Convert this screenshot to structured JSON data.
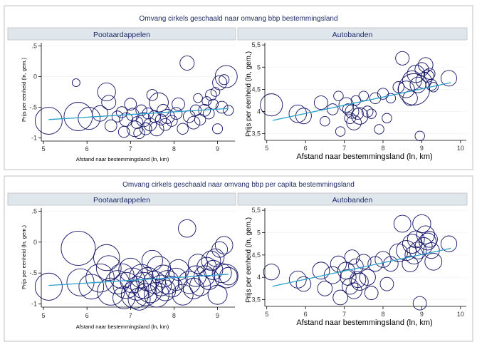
{
  "groups": [
    {
      "title": "Omvang cirkels geschaald naar omvang bbp bestemmingsland",
      "panels": [
        {
          "title": "Pootaardappelen",
          "ylabel": "Prijs per eenheid (ln, gem.)",
          "xlabel": "Afstand naar bestemmingsland (ln, km)"
        },
        {
          "title": "Autobanden",
          "ylabel": "Prijs per eenheid (ln, gem.)",
          "xlabel": "Afstand naar bestemmingsland (ln, km)"
        }
      ]
    },
    {
      "title": "Omvang cirkels geschaald naar omvang bbp per capita bestemmingsland",
      "panels": [
        {
          "title": "Pootaardappelen",
          "ylabel": "Prijs per eenheid (ln, gem.)",
          "xlabel": "Afstand naar bestemmingsland (ln, km)"
        },
        {
          "title": "Autobanden",
          "ylabel": "Prijs per eenheid (ln, gem.)",
          "xlabel": "Afstand naar bestemmingsland (ln, km)"
        }
      ]
    }
  ],
  "chart_data": [
    {
      "type": "scatter",
      "title": "Pootaardappelen",
      "group": "Omvang cirkels geschaald naar omvang bbp bestemmingsland",
      "xlabel": "Afstand naar bestemmingsland (ln, km)",
      "ylabel": "Prijs per eenheid (ln, gem.)",
      "xlim": [
        4.95,
        9.4
      ],
      "ylim": [
        -1.05,
        0.55
      ],
      "xticks": [
        5,
        6,
        7,
        8,
        9
      ],
      "yticks": [
        0.5,
        0,
        -0.5,
        -1
      ],
      "ytick_labels": [
        ".5",
        "0",
        "-.5",
        "-1"
      ],
      "bubble_size": "bbp",
      "points": [
        {
          "x": 5.12,
          "y": -0.72,
          "s": 1.8
        },
        {
          "x": 5.75,
          "y": -0.1,
          "s": 0.15
        },
        {
          "x": 5.8,
          "y": -0.65,
          "s": 2.0
        },
        {
          "x": 6.05,
          "y": -0.68,
          "s": 1.2
        },
        {
          "x": 6.3,
          "y": -0.6,
          "s": 0.6
        },
        {
          "x": 6.45,
          "y": -0.25,
          "s": 0.8
        },
        {
          "x": 6.5,
          "y": -0.42,
          "s": 0.5
        },
        {
          "x": 6.55,
          "y": -0.8,
          "s": 0.35
        },
        {
          "x": 6.7,
          "y": -0.65,
          "s": 0.3
        },
        {
          "x": 6.8,
          "y": -0.58,
          "s": 0.3
        },
        {
          "x": 6.85,
          "y": -0.9,
          "s": 0.3
        },
        {
          "x": 6.9,
          "y": -0.7,
          "s": 0.45
        },
        {
          "x": 7.0,
          "y": -0.45,
          "s": 0.35
        },
        {
          "x": 7.05,
          "y": -0.62,
          "s": 0.4
        },
        {
          "x": 7.1,
          "y": -0.85,
          "s": 0.6
        },
        {
          "x": 7.15,
          "y": -0.75,
          "s": 0.35
        },
        {
          "x": 7.2,
          "y": -0.92,
          "s": 0.3
        },
        {
          "x": 7.25,
          "y": -0.55,
          "s": 0.3
        },
        {
          "x": 7.3,
          "y": -0.7,
          "s": 0.5
        },
        {
          "x": 7.35,
          "y": -0.85,
          "s": 0.35
        },
        {
          "x": 7.4,
          "y": -0.6,
          "s": 0.3
        },
        {
          "x": 7.45,
          "y": -0.78,
          "s": 0.4
        },
        {
          "x": 7.5,
          "y": -0.3,
          "s": 0.3
        },
        {
          "x": 7.55,
          "y": -0.65,
          "s": 0.35
        },
        {
          "x": 7.6,
          "y": -0.85,
          "s": 0.5
        },
        {
          "x": 7.65,
          "y": -0.42,
          "s": 0.9
        },
        {
          "x": 7.7,
          "y": -0.7,
          "s": 0.3
        },
        {
          "x": 7.75,
          "y": -0.55,
          "s": 0.35
        },
        {
          "x": 7.8,
          "y": -0.78,
          "s": 0.35
        },
        {
          "x": 7.85,
          "y": -0.65,
          "s": 0.5
        },
        {
          "x": 7.95,
          "y": -0.72,
          "s": 0.3
        },
        {
          "x": 8.05,
          "y": -0.6,
          "s": 0.35
        },
        {
          "x": 8.1,
          "y": -0.45,
          "s": 0.4
        },
        {
          "x": 8.2,
          "y": -0.85,
          "s": 0.3
        },
        {
          "x": 8.3,
          "y": 0.22,
          "s": 0.5
        },
        {
          "x": 8.35,
          "y": -0.65,
          "s": 0.35
        },
        {
          "x": 8.45,
          "y": -0.75,
          "s": 0.4
        },
        {
          "x": 8.5,
          "y": -0.55,
          "s": 0.3
        },
        {
          "x": 8.55,
          "y": -0.35,
          "s": 0.2
        },
        {
          "x": 8.6,
          "y": -0.7,
          "s": 0.3
        },
        {
          "x": 8.7,
          "y": -0.55,
          "s": 0.35
        },
        {
          "x": 8.75,
          "y": -0.4,
          "s": 0.2
        },
        {
          "x": 8.8,
          "y": -0.6,
          "s": 0.3
        },
        {
          "x": 8.85,
          "y": -0.3,
          "s": 0.3
        },
        {
          "x": 8.9,
          "y": -0.45,
          "s": 0.25
        },
        {
          "x": 8.95,
          "y": -0.25,
          "s": 0.2
        },
        {
          "x": 9.0,
          "y": -0.85,
          "s": 0.25
        },
        {
          "x": 9.05,
          "y": -0.1,
          "s": 0.5
        },
        {
          "x": 9.1,
          "y": -0.5,
          "s": 0.35
        },
        {
          "x": 9.15,
          "y": -0.05,
          "s": 0.25
        },
        {
          "x": 9.2,
          "y": 0.0,
          "s": 1.2
        },
        {
          "x": 9.25,
          "y": -0.55,
          "s": 0.25
        }
      ],
      "fit": {
        "x": [
          5.12,
          9.25
        ],
        "y": [
          -0.7,
          -0.52
        ]
      }
    },
    {
      "type": "scatter",
      "title": "Autobanden",
      "group": "Omvang cirkels geschaald naar omvang bbp bestemmingsland",
      "xlabel": "Afstand naar bestemmingsland (ln, km)",
      "ylabel": "Prijs per eenheid (ln, gem.)",
      "xlim": [
        4.95,
        10.15
      ],
      "ylim": [
        3.35,
        5.55
      ],
      "xticks": [
        5,
        6,
        7,
        8,
        9,
        10
      ],
      "yticks": [
        5.5,
        5,
        4.5,
        4,
        3.5
      ],
      "ytick_labels": [
        "5,5",
        "5",
        "4,5",
        "4",
        "3,5"
      ],
      "bubble_size": "bbp",
      "points": [
        {
          "x": 5.12,
          "y": 4.15,
          "s": 0.8
        },
        {
          "x": 5.8,
          "y": 3.95,
          "s": 0.5
        },
        {
          "x": 5.95,
          "y": 3.9,
          "s": 0.4
        },
        {
          "x": 6.4,
          "y": 4.2,
          "s": 0.3
        },
        {
          "x": 6.5,
          "y": 3.78,
          "s": 0.15
        },
        {
          "x": 6.7,
          "y": 4.05,
          "s": 0.2
        },
        {
          "x": 6.85,
          "y": 4.35,
          "s": 0.15
        },
        {
          "x": 6.9,
          "y": 3.55,
          "s": 0.15
        },
        {
          "x": 7.05,
          "y": 4.15,
          "s": 0.35
        },
        {
          "x": 7.1,
          "y": 4.05,
          "s": 0.2
        },
        {
          "x": 7.15,
          "y": 3.85,
          "s": 0.2
        },
        {
          "x": 7.2,
          "y": 4.0,
          "s": 0.3
        },
        {
          "x": 7.25,
          "y": 3.75,
          "s": 0.35
        },
        {
          "x": 7.3,
          "y": 4.25,
          "s": 0.15
        },
        {
          "x": 7.35,
          "y": 3.95,
          "s": 0.2
        },
        {
          "x": 7.4,
          "y": 3.9,
          "s": 0.45
        },
        {
          "x": 7.5,
          "y": 4.35,
          "s": 0.15
        },
        {
          "x": 7.6,
          "y": 4.0,
          "s": 0.2
        },
        {
          "x": 7.7,
          "y": 3.95,
          "s": 0.15
        },
        {
          "x": 7.8,
          "y": 4.3,
          "s": 0.2
        },
        {
          "x": 7.9,
          "y": 3.6,
          "s": 0.15
        },
        {
          "x": 8.0,
          "y": 4.4,
          "s": 0.2
        },
        {
          "x": 8.1,
          "y": 3.85,
          "s": 0.15
        },
        {
          "x": 8.2,
          "y": 4.3,
          "s": 0.15
        },
        {
          "x": 8.4,
          "y": 4.55,
          "s": 0.2
        },
        {
          "x": 8.5,
          "y": 5.2,
          "s": 0.3
        },
        {
          "x": 8.6,
          "y": 4.5,
          "s": 0.45
        },
        {
          "x": 8.7,
          "y": 4.3,
          "s": 0.35
        },
        {
          "x": 8.75,
          "y": 4.7,
          "s": 0.6
        },
        {
          "x": 8.8,
          "y": 4.5,
          "s": 1.6
        },
        {
          "x": 8.85,
          "y": 4.85,
          "s": 0.5
        },
        {
          "x": 8.9,
          "y": 4.6,
          "s": 0.4
        },
        {
          "x": 8.95,
          "y": 3.45,
          "s": 0.15
        },
        {
          "x": 9.0,
          "y": 4.95,
          "s": 0.3
        },
        {
          "x": 9.05,
          "y": 4.7,
          "s": 0.4
        },
        {
          "x": 9.1,
          "y": 5.05,
          "s": 0.35
        },
        {
          "x": 9.15,
          "y": 4.8,
          "s": 0.25
        },
        {
          "x": 9.2,
          "y": 4.85,
          "s": 0.2
        },
        {
          "x": 9.25,
          "y": 4.6,
          "s": 0.2
        },
        {
          "x": 9.3,
          "y": 4.55,
          "s": 0.15
        },
        {
          "x": 9.7,
          "y": 4.75,
          "s": 0.4
        }
      ],
      "fit": {
        "x": [
          5.15,
          9.75
        ],
        "y": [
          3.8,
          4.65
        ]
      }
    },
    {
      "type": "scatter",
      "title": "Pootaardappelen",
      "group": "Omvang cirkels geschaald naar omvang bbp per capita bestemmingsland",
      "xlabel": "Afstand naar bestemmingsland (ln, km)",
      "ylabel": "Prijs per eenheid (ln, gem.)",
      "xlim": [
        4.95,
        9.4
      ],
      "ylim": [
        -1.05,
        0.55
      ],
      "xticks": [
        5,
        6,
        7,
        8,
        9
      ],
      "yticks": [
        0.5,
        0,
        -0.5,
        -1
      ],
      "ytick_labels": [
        ".5",
        "0",
        "-.5",
        "-1"
      ],
      "bubble_size": "bbp per capita",
      "points": [
        {
          "x": 5.12,
          "y": -0.72,
          "s": 1.2
        },
        {
          "x": 5.8,
          "y": -0.1,
          "s": 1.9
        },
        {
          "x": 5.85,
          "y": -0.65,
          "s": 1.2
        },
        {
          "x": 6.1,
          "y": -0.72,
          "s": 1.0
        },
        {
          "x": 6.3,
          "y": -0.58,
          "s": 1.3
        },
        {
          "x": 6.45,
          "y": -0.25,
          "s": 1.1
        },
        {
          "x": 6.5,
          "y": -0.42,
          "s": 1.0
        },
        {
          "x": 6.55,
          "y": -0.8,
          "s": 1.2
        },
        {
          "x": 6.7,
          "y": -0.65,
          "s": 0.9
        },
        {
          "x": 6.8,
          "y": -0.55,
          "s": 1.0
        },
        {
          "x": 6.85,
          "y": -0.9,
          "s": 0.8
        },
        {
          "x": 6.9,
          "y": -0.7,
          "s": 1.1
        },
        {
          "x": 7.0,
          "y": -0.45,
          "s": 0.9
        },
        {
          "x": 7.05,
          "y": -0.62,
          "s": 1.0
        },
        {
          "x": 7.1,
          "y": -0.85,
          "s": 1.2
        },
        {
          "x": 7.15,
          "y": -0.75,
          "s": 0.9
        },
        {
          "x": 7.2,
          "y": -0.92,
          "s": 0.8
        },
        {
          "x": 7.25,
          "y": -0.55,
          "s": 0.9
        },
        {
          "x": 7.3,
          "y": -0.7,
          "s": 1.1
        },
        {
          "x": 7.35,
          "y": -0.85,
          "s": 0.8
        },
        {
          "x": 7.4,
          "y": -0.6,
          "s": 0.9
        },
        {
          "x": 7.45,
          "y": -0.78,
          "s": 1.0
        },
        {
          "x": 7.5,
          "y": -0.3,
          "s": 0.7
        },
        {
          "x": 7.55,
          "y": -0.65,
          "s": 0.8
        },
        {
          "x": 7.6,
          "y": -0.85,
          "s": 1.0
        },
        {
          "x": 7.65,
          "y": -0.42,
          "s": 0.9
        },
        {
          "x": 7.7,
          "y": -0.7,
          "s": 0.7
        },
        {
          "x": 7.75,
          "y": -0.55,
          "s": 0.8
        },
        {
          "x": 7.8,
          "y": -0.78,
          "s": 0.7
        },
        {
          "x": 7.85,
          "y": -0.65,
          "s": 0.9
        },
        {
          "x": 7.95,
          "y": -0.72,
          "s": 0.7
        },
        {
          "x": 8.05,
          "y": -0.6,
          "s": 0.8
        },
        {
          "x": 8.1,
          "y": -0.45,
          "s": 0.7
        },
        {
          "x": 8.2,
          "y": -0.85,
          "s": 0.7
        },
        {
          "x": 8.3,
          "y": 0.22,
          "s": 0.5
        },
        {
          "x": 8.35,
          "y": -0.65,
          "s": 0.8
        },
        {
          "x": 8.45,
          "y": -0.75,
          "s": 0.7
        },
        {
          "x": 8.5,
          "y": -0.55,
          "s": 0.7
        },
        {
          "x": 8.55,
          "y": -0.35,
          "s": 0.6
        },
        {
          "x": 8.6,
          "y": -0.7,
          "s": 0.7
        },
        {
          "x": 8.7,
          "y": -0.55,
          "s": 0.7
        },
        {
          "x": 8.75,
          "y": -0.4,
          "s": 0.6
        },
        {
          "x": 8.8,
          "y": -0.6,
          "s": 0.7
        },
        {
          "x": 8.85,
          "y": -0.3,
          "s": 0.6
        },
        {
          "x": 8.9,
          "y": -0.45,
          "s": 0.6
        },
        {
          "x": 8.95,
          "y": -0.25,
          "s": 0.5
        },
        {
          "x": 9.0,
          "y": -0.85,
          "s": 0.6
        },
        {
          "x": 9.05,
          "y": -0.12,
          "s": 0.4
        },
        {
          "x": 9.1,
          "y": -0.5,
          "s": 0.6
        },
        {
          "x": 9.15,
          "y": -0.05,
          "s": 0.5
        },
        {
          "x": 9.2,
          "y": -0.55,
          "s": 0.9
        },
        {
          "x": 9.25,
          "y": -0.55,
          "s": 0.5
        }
      ],
      "fit": {
        "x": [
          5.12,
          9.25
        ],
        "y": [
          -0.7,
          -0.52
        ]
      }
    },
    {
      "type": "scatter",
      "title": "Autobanden",
      "group": "Omvang cirkels geschaald naar omvang bbp per capita bestemmingsland",
      "xlabel": "Afstand naar bestemmingsland (ln, km)",
      "ylabel": "Prijs per eenheid (ln, gem.)",
      "xlim": [
        4.95,
        10.15
      ],
      "ylim": [
        3.35,
        5.55
      ],
      "xticks": [
        5,
        6,
        7,
        8,
        9,
        10
      ],
      "yticks": [
        5.5,
        5,
        4.5,
        4,
        3.5
      ],
      "ytick_labels": [
        "5,5",
        "5",
        "4,5",
        "4",
        "3,5"
      ],
      "bubble_size": "bbp per capita",
      "points": [
        {
          "x": 5.12,
          "y": 4.12,
          "s": 0.7
        },
        {
          "x": 5.8,
          "y": 3.95,
          "s": 0.8
        },
        {
          "x": 5.95,
          "y": 3.85,
          "s": 0.6
        },
        {
          "x": 6.4,
          "y": 4.15,
          "s": 0.8
        },
        {
          "x": 6.5,
          "y": 3.75,
          "s": 0.6
        },
        {
          "x": 6.7,
          "y": 4.05,
          "s": 0.8
        },
        {
          "x": 6.85,
          "y": 4.3,
          "s": 0.7
        },
        {
          "x": 6.9,
          "y": 3.55,
          "s": 0.6
        },
        {
          "x": 7.05,
          "y": 4.15,
          "s": 0.8
        },
        {
          "x": 7.1,
          "y": 4.0,
          "s": 0.7
        },
        {
          "x": 7.15,
          "y": 3.8,
          "s": 0.7
        },
        {
          "x": 7.2,
          "y": 4.45,
          "s": 0.6
        },
        {
          "x": 7.25,
          "y": 3.7,
          "s": 0.7
        },
        {
          "x": 7.3,
          "y": 4.25,
          "s": 0.6
        },
        {
          "x": 7.35,
          "y": 3.95,
          "s": 0.7
        },
        {
          "x": 7.4,
          "y": 3.9,
          "s": 0.8
        },
        {
          "x": 7.5,
          "y": 4.35,
          "s": 0.6
        },
        {
          "x": 7.6,
          "y": 4.0,
          "s": 0.7
        },
        {
          "x": 7.7,
          "y": 3.65,
          "s": 0.5
        },
        {
          "x": 7.8,
          "y": 4.3,
          "s": 0.6
        },
        {
          "x": 8.0,
          "y": 4.4,
          "s": 0.7
        },
        {
          "x": 8.1,
          "y": 3.85,
          "s": 0.5
        },
        {
          "x": 8.2,
          "y": 4.3,
          "s": 0.6
        },
        {
          "x": 8.4,
          "y": 4.55,
          "s": 0.9
        },
        {
          "x": 8.5,
          "y": 5.2,
          "s": 0.8
        },
        {
          "x": 8.6,
          "y": 4.6,
          "s": 1.1
        },
        {
          "x": 8.7,
          "y": 4.3,
          "s": 0.7
        },
        {
          "x": 8.75,
          "y": 4.75,
          "s": 1.0
        },
        {
          "x": 8.8,
          "y": 4.5,
          "s": 0.9
        },
        {
          "x": 8.85,
          "y": 4.85,
          "s": 0.8
        },
        {
          "x": 8.9,
          "y": 4.6,
          "s": 0.8
        },
        {
          "x": 8.95,
          "y": 3.42,
          "s": 0.5
        },
        {
          "x": 9.0,
          "y": 5.2,
          "s": 0.9
        },
        {
          "x": 9.05,
          "y": 4.7,
          "s": 0.8
        },
        {
          "x": 9.1,
          "y": 4.95,
          "s": 0.9
        },
        {
          "x": 9.15,
          "y": 4.8,
          "s": 0.8
        },
        {
          "x": 9.2,
          "y": 4.85,
          "s": 0.7
        },
        {
          "x": 9.25,
          "y": 4.6,
          "s": 0.7
        },
        {
          "x": 9.3,
          "y": 4.35,
          "s": 0.8
        },
        {
          "x": 9.7,
          "y": 4.75,
          "s": 0.7
        }
      ],
      "fit": {
        "x": [
          5.15,
          9.75
        ],
        "y": [
          3.8,
          4.65
        ]
      }
    }
  ]
}
